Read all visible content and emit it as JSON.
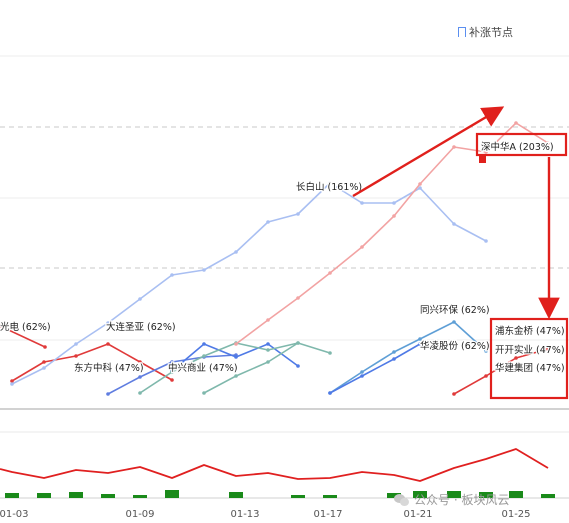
{
  "header": {
    "label": "补涨节点"
  },
  "watermark": {
    "text": "公众号 · 板块风云"
  },
  "chart_data": {
    "type": "line",
    "x": [
      "01-03",
      "01-09",
      "01-13",
      "01-17",
      "01-21",
      "01-25"
    ],
    "series": [
      {
        "name": "光电 (62%)",
        "color": "#e03a3a",
        "points": [
          [
            0,
            326
          ],
          [
            45,
            347
          ]
        ]
      },
      {
        "name": "大连圣亚 (62%)",
        "color": "#e03a3a",
        "points": [
          [
            12,
            381
          ],
          [
            44,
            362
          ],
          [
            76,
            356
          ],
          [
            108,
            344
          ],
          [
            140,
            362
          ],
          [
            172,
            380
          ]
        ]
      },
      {
        "name": "东方中科 (47%)",
        "color": "#5f7de0",
        "points": [
          [
            108,
            394
          ],
          [
            140,
            377
          ],
          [
            172,
            362
          ],
          [
            204,
            357
          ],
          [
            236,
            355
          ]
        ]
      },
      {
        "name": "中兴商业 (47%)",
        "color": "#4f7ae6",
        "points": [
          [
            172,
            371
          ],
          [
            204,
            344
          ],
          [
            236,
            357
          ],
          [
            268,
            344
          ],
          [
            298,
            366
          ]
        ]
      },
      {
        "name": "green-1",
        "color": "#7fb8ac",
        "points": [
          [
            140,
            393
          ],
          [
            172,
            372
          ],
          [
            204,
            356
          ],
          [
            236,
            343
          ],
          [
            268,
            350
          ],
          [
            298,
            343
          ],
          [
            330,
            353
          ]
        ]
      },
      {
        "name": "green-2",
        "color": "#7fb8ac",
        "points": [
          [
            204,
            393
          ],
          [
            236,
            376
          ],
          [
            268,
            362
          ],
          [
            298,
            343
          ]
        ]
      },
      {
        "name": "长白山 (161%)",
        "color": "#a9bff2",
        "points": [
          [
            12,
            384
          ],
          [
            44,
            368
          ],
          [
            76,
            344
          ],
          [
            108,
            323
          ],
          [
            140,
            299
          ],
          [
            172,
            275
          ],
          [
            204,
            270
          ],
          [
            236,
            252
          ],
          [
            268,
            222
          ],
          [
            298,
            214
          ],
          [
            330,
            183
          ],
          [
            362,
            203
          ],
          [
            394,
            203
          ],
          [
            420,
            188
          ],
          [
            454,
            224
          ],
          [
            486,
            241
          ]
        ]
      },
      {
        "name": "深中华A (203%)",
        "color": "#f2a3a3",
        "points": [
          [
            236,
            344
          ],
          [
            268,
            320
          ],
          [
            298,
            298
          ],
          [
            330,
            273
          ],
          [
            362,
            247
          ],
          [
            394,
            216
          ],
          [
            420,
            184
          ],
          [
            454,
            147
          ],
          [
            486,
            152
          ],
          [
            516,
            123
          ],
          [
            548,
            143
          ]
        ]
      },
      {
        "name": "同兴环保 (62%)",
        "color": "#5f9fd6",
        "points": [
          [
            330,
            393
          ],
          [
            362,
            372
          ],
          [
            394,
            352
          ],
          [
            420,
            339
          ],
          [
            454,
            322
          ],
          [
            486,
            351
          ]
        ]
      },
      {
        "name": "华凌股份 (62%)",
        "color": "#4f7ae6",
        "points": [
          [
            330,
            393
          ],
          [
            362,
            376
          ],
          [
            394,
            359
          ],
          [
            420,
            344
          ]
        ]
      },
      {
        "name": "浦东金桥 (47%)",
        "color": "#e03a3a",
        "points": [
          [
            454,
            394
          ],
          [
            486,
            376
          ],
          [
            516,
            358
          ],
          [
            548,
            349
          ]
        ]
      }
    ],
    "lower_line": {
      "color": "#e02020",
      "points": [
        [
          0,
          469
        ],
        [
          12,
          472
        ],
        [
          44,
          478
        ],
        [
          76,
          470
        ],
        [
          108,
          473
        ],
        [
          140,
          467
        ],
        [
          172,
          478
        ],
        [
          204,
          465
        ],
        [
          236,
          476
        ],
        [
          268,
          473
        ],
        [
          298,
          479
        ],
        [
          330,
          478
        ],
        [
          362,
          472
        ],
        [
          394,
          475
        ],
        [
          420,
          481
        ],
        [
          454,
          468
        ],
        [
          486,
          459
        ],
        [
          516,
          449
        ],
        [
          548,
          468
        ]
      ]
    },
    "volume_bars": [
      [
        12,
        5
      ],
      [
        44,
        5
      ],
      [
        76,
        6
      ],
      [
        108,
        4
      ],
      [
        140,
        3
      ],
      [
        172,
        8
      ],
      [
        236,
        6
      ],
      [
        298,
        3
      ],
      [
        330,
        3
      ],
      [
        394,
        5
      ],
      [
        420,
        7
      ],
      [
        454,
        7
      ],
      [
        486,
        6
      ],
      [
        516,
        7
      ],
      [
        548,
        4
      ]
    ],
    "annotations": [
      {
        "text": "光电 (62%)"
      },
      {
        "text": "大连圣亚 (62%)"
      },
      {
        "text": "东方中科 (47%)"
      },
      {
        "text": "中兴商业 (47%)"
      },
      {
        "text": "长白山 (161%)"
      },
      {
        "text": "深中华A (203%)"
      },
      {
        "text": "同兴环保 (62%)"
      },
      {
        "text": "华凌股份 (62%)"
      },
      {
        "text": "浦东金桥 (47%)"
      },
      {
        "text": "开开实业 (47%)"
      },
      {
        "text": "华建集团 (47%)"
      }
    ]
  }
}
